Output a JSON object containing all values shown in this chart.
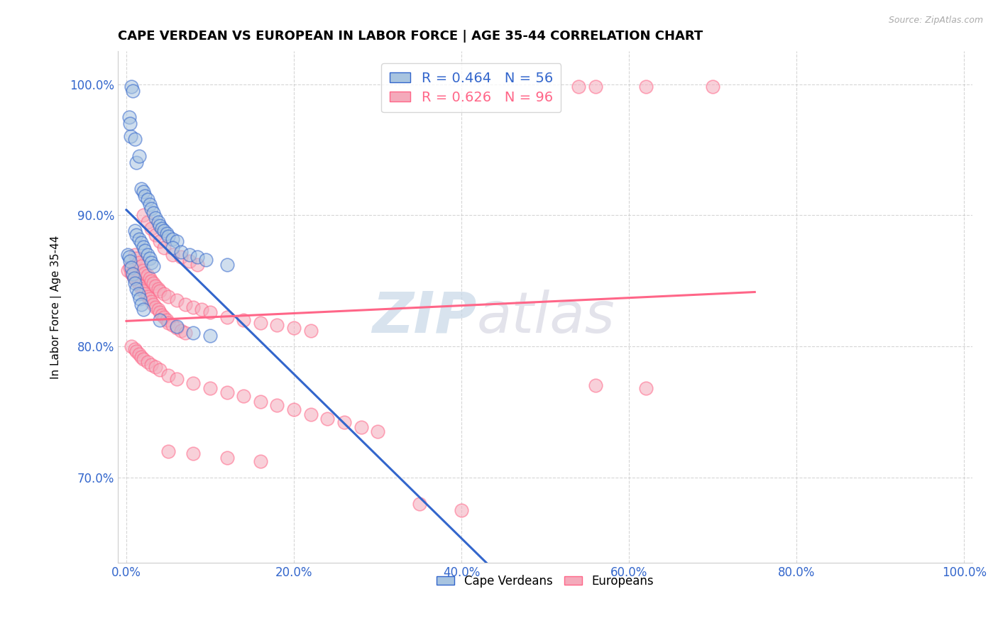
{
  "title": "CAPE VERDEAN VS EUROPEAN IN LABOR FORCE | AGE 35-44 CORRELATION CHART",
  "source": "Source: ZipAtlas.com",
  "ylabel": "In Labor Force | Age 35-44",
  "xlim": [
    -0.01,
    1.01
  ],
  "ylim": [
    0.635,
    1.025
  ],
  "ytick_labels": [
    "70.0%",
    "80.0%",
    "90.0%",
    "100.0%"
  ],
  "ytick_values": [
    0.7,
    0.8,
    0.9,
    1.0
  ],
  "xtick_labels": [
    "0.0%",
    "20.0%",
    "40.0%",
    "60.0%",
    "80.0%",
    "100.0%"
  ],
  "xtick_values": [
    0.0,
    0.2,
    0.4,
    0.6,
    0.8,
    1.0
  ],
  "legend_label_blue": "Cape Verdeans",
  "legend_label_pink": "Europeans",
  "r_blue": 0.464,
  "n_blue": 56,
  "r_pink": 0.626,
  "n_pink": 96,
  "blue_color": "#A8C4E0",
  "pink_color": "#F4AABB",
  "trend_blue": "#3366CC",
  "trend_pink": "#FF6688",
  "watermark_zip": "ZIP",
  "watermark_atlas": "atlas",
  "background_color": "#FFFFFF",
  "blue_scatter": [
    [
      0.005,
      0.96
    ],
    [
      0.01,
      0.958
    ],
    [
      0.012,
      0.94
    ],
    [
      0.015,
      0.945
    ],
    [
      0.018,
      0.92
    ],
    [
      0.02,
      0.918
    ],
    [
      0.022,
      0.915
    ],
    [
      0.025,
      0.912
    ],
    [
      0.028,
      0.908
    ],
    [
      0.03,
      0.905
    ],
    [
      0.032,
      0.902
    ],
    [
      0.035,
      0.898
    ],
    [
      0.038,
      0.895
    ],
    [
      0.04,
      0.892
    ],
    [
      0.042,
      0.89
    ],
    [
      0.045,
      0.888
    ],
    [
      0.048,
      0.886
    ],
    [
      0.05,
      0.884
    ],
    [
      0.055,
      0.882
    ],
    [
      0.06,
      0.88
    ],
    [
      0.01,
      0.888
    ],
    [
      0.012,
      0.885
    ],
    [
      0.015,
      0.882
    ],
    [
      0.018,
      0.879
    ],
    [
      0.02,
      0.876
    ],
    [
      0.022,
      0.873
    ],
    [
      0.025,
      0.87
    ],
    [
      0.028,
      0.867
    ],
    [
      0.03,
      0.864
    ],
    [
      0.032,
      0.861
    ],
    [
      0.002,
      0.87
    ],
    [
      0.003,
      0.868
    ],
    [
      0.004,
      0.865
    ],
    [
      0.006,
      0.86
    ],
    [
      0.008,
      0.855
    ],
    [
      0.009,
      0.852
    ],
    [
      0.01,
      0.848
    ],
    [
      0.012,
      0.844
    ],
    [
      0.014,
      0.84
    ],
    [
      0.016,
      0.836
    ],
    [
      0.018,
      0.832
    ],
    [
      0.02,
      0.828
    ],
    [
      0.04,
      0.82
    ],
    [
      0.06,
      0.815
    ],
    [
      0.08,
      0.81
    ],
    [
      0.1,
      0.808
    ],
    [
      0.006,
      0.998
    ],
    [
      0.008,
      0.995
    ],
    [
      0.003,
      0.975
    ],
    [
      0.004,
      0.97
    ],
    [
      0.055,
      0.875
    ],
    [
      0.065,
      0.872
    ],
    [
      0.075,
      0.87
    ],
    [
      0.085,
      0.868
    ],
    [
      0.095,
      0.866
    ],
    [
      0.12,
      0.862
    ]
  ],
  "pink_scatter": [
    [
      0.002,
      0.858
    ],
    [
      0.004,
      0.86
    ],
    [
      0.006,
      0.856
    ],
    [
      0.008,
      0.854
    ],
    [
      0.01,
      0.852
    ],
    [
      0.012,
      0.85
    ],
    [
      0.014,
      0.848
    ],
    [
      0.016,
      0.846
    ],
    [
      0.018,
      0.844
    ],
    [
      0.02,
      0.842
    ],
    [
      0.022,
      0.84
    ],
    [
      0.025,
      0.838
    ],
    [
      0.028,
      0.836
    ],
    [
      0.03,
      0.834
    ],
    [
      0.032,
      0.832
    ],
    [
      0.035,
      0.83
    ],
    [
      0.038,
      0.828
    ],
    [
      0.04,
      0.826
    ],
    [
      0.042,
      0.824
    ],
    [
      0.045,
      0.822
    ],
    [
      0.048,
      0.82
    ],
    [
      0.05,
      0.818
    ],
    [
      0.055,
      0.816
    ],
    [
      0.06,
      0.814
    ],
    [
      0.065,
      0.812
    ],
    [
      0.07,
      0.81
    ],
    [
      0.01,
      0.87
    ],
    [
      0.012,
      0.867
    ],
    [
      0.015,
      0.864
    ],
    [
      0.018,
      0.861
    ],
    [
      0.02,
      0.858
    ],
    [
      0.022,
      0.856
    ],
    [
      0.025,
      0.854
    ],
    [
      0.028,
      0.852
    ],
    [
      0.03,
      0.85
    ],
    [
      0.032,
      0.848
    ],
    [
      0.035,
      0.846
    ],
    [
      0.038,
      0.844
    ],
    [
      0.04,
      0.842
    ],
    [
      0.045,
      0.84
    ],
    [
      0.05,
      0.838
    ],
    [
      0.06,
      0.835
    ],
    [
      0.07,
      0.832
    ],
    [
      0.08,
      0.83
    ],
    [
      0.09,
      0.828
    ],
    [
      0.1,
      0.826
    ],
    [
      0.12,
      0.822
    ],
    [
      0.14,
      0.82
    ],
    [
      0.16,
      0.818
    ],
    [
      0.18,
      0.816
    ],
    [
      0.2,
      0.814
    ],
    [
      0.22,
      0.812
    ],
    [
      0.006,
      0.8
    ],
    [
      0.01,
      0.798
    ],
    [
      0.012,
      0.796
    ],
    [
      0.015,
      0.794
    ],
    [
      0.018,
      0.792
    ],
    [
      0.02,
      0.79
    ],
    [
      0.025,
      0.788
    ],
    [
      0.03,
      0.786
    ],
    [
      0.035,
      0.784
    ],
    [
      0.04,
      0.782
    ],
    [
      0.05,
      0.778
    ],
    [
      0.06,
      0.775
    ],
    [
      0.08,
      0.772
    ],
    [
      0.1,
      0.768
    ],
    [
      0.12,
      0.765
    ],
    [
      0.14,
      0.762
    ],
    [
      0.16,
      0.758
    ],
    [
      0.18,
      0.755
    ],
    [
      0.2,
      0.752
    ],
    [
      0.22,
      0.748
    ],
    [
      0.24,
      0.745
    ],
    [
      0.26,
      0.742
    ],
    [
      0.28,
      0.738
    ],
    [
      0.3,
      0.735
    ],
    [
      0.05,
      0.72
    ],
    [
      0.08,
      0.718
    ],
    [
      0.12,
      0.715
    ],
    [
      0.16,
      0.712
    ],
    [
      0.56,
      0.77
    ],
    [
      0.62,
      0.768
    ],
    [
      0.02,
      0.9
    ],
    [
      0.025,
      0.895
    ],
    [
      0.03,
      0.89
    ],
    [
      0.035,
      0.885
    ],
    [
      0.04,
      0.88
    ],
    [
      0.045,
      0.875
    ],
    [
      0.055,
      0.87
    ],
    [
      0.065,
      0.868
    ],
    [
      0.075,
      0.865
    ],
    [
      0.085,
      0.862
    ],
    [
      0.7,
      0.998
    ],
    [
      0.62,
      0.998
    ],
    [
      0.56,
      0.998
    ],
    [
      0.54,
      0.998
    ],
    [
      0.35,
      0.68
    ],
    [
      0.4,
      0.675
    ]
  ]
}
